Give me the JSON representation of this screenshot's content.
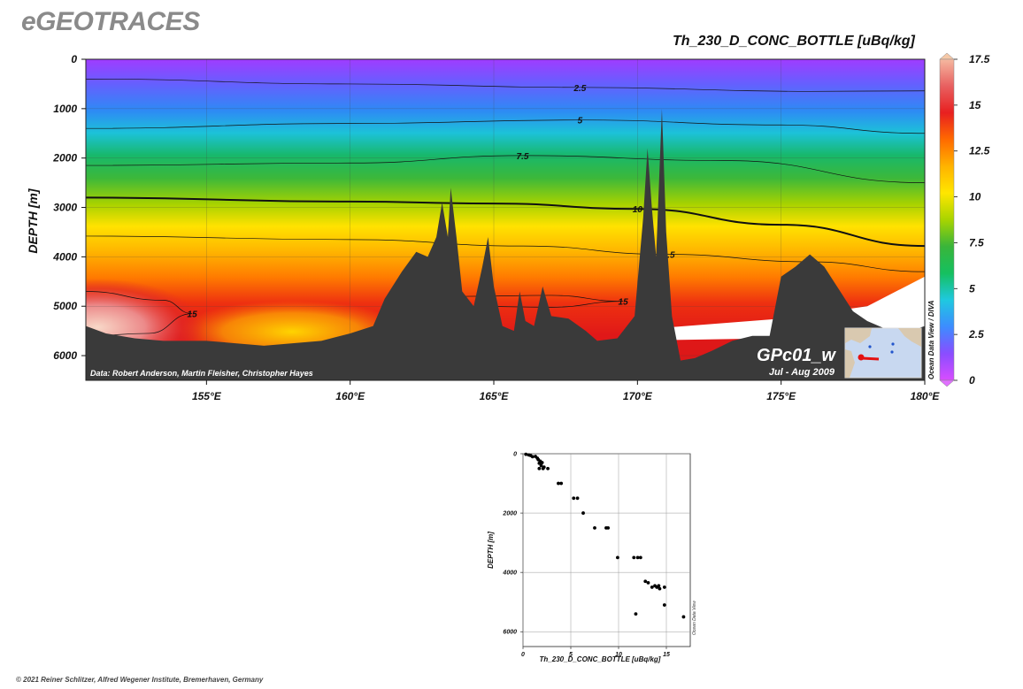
{
  "app_title": "eGEOTRACES",
  "section_title": "Th_230_D_CONC_BOTTLE [uBq/kg]",
  "copyright": "© 2021 Reiner Schlitzer, Alfred Wegener Institute, Bremerhaven, Germany",
  "section": {
    "credit": "Data: Robert Anderson, Martin Fleisher, Christopher Hayes",
    "cruise": "GPc01_w",
    "cruise_date": "Jul - Aug 2009",
    "odv_label": "Ocean Data View / DIVA",
    "colorbar_label": "Th_230_D_CONC_BOTTLE [uBq/kg]"
  },
  "scatter": {
    "odv_label": "Ocean Data View",
    "colors": {
      "points": "#000000"
    }
  },
  "chart_data": [
    {
      "type": "heatmap",
      "title": "Th_230_D_CONC_BOTTLE [uBq/kg]",
      "xlabel": "",
      "ylabel": "DEPTH [m]",
      "x_ticks": [
        "155°E",
        "160°E",
        "165°E",
        "170°E",
        "175°E",
        "180°E"
      ],
      "x_tick_values": [
        155,
        160,
        165,
        170,
        175,
        180
      ],
      "xlim": [
        150.8,
        180
      ],
      "y_ticks": [
        "0",
        "1000",
        "2000",
        "3000",
        "4000",
        "5000",
        "6000"
      ],
      "y_tick_values": [
        0,
        1000,
        2000,
        3000,
        4000,
        5000,
        6000
      ],
      "ylim": [
        0,
        6500
      ],
      "y_inverted": true,
      "colorbar": {
        "range": [
          0,
          17.5
        ],
        "ticks": [
          "0",
          "2.5",
          "5",
          "7.5",
          "10",
          "12.5",
          "15",
          "17.5"
        ],
        "tick_values": [
          0,
          2.5,
          5,
          7.5,
          10,
          12.5,
          15,
          17.5
        ],
        "colors": [
          "#d84dff",
          "#8a4dff",
          "#3d8cff",
          "#1fc8e0",
          "#15c060",
          "#39b53a",
          "#a8d400",
          "#ffe600",
          "#ffb300",
          "#ff6a00",
          "#e82020",
          "#e86060",
          "#f5b8a0"
        ]
      },
      "contours": [
        {
          "label": "2.5",
          "depths": [
            {
              "x": 150.8,
              "y": 400
            },
            {
              "x": 160,
              "y": 500
            },
            {
              "x": 168,
              "y": 570
            },
            {
              "x": 176,
              "y": 650
            },
            {
              "x": 180,
              "y": 640
            }
          ]
        },
        {
          "label": "5",
          "depths": [
            {
              "x": 150.8,
              "y": 1400
            },
            {
              "x": 160,
              "y": 1300
            },
            {
              "x": 168,
              "y": 1230
            },
            {
              "x": 175,
              "y": 1330
            },
            {
              "x": 180,
              "y": 1500
            }
          ]
        },
        {
          "label": "7.5",
          "depths": [
            {
              "x": 150.8,
              "y": 2150
            },
            {
              "x": 160,
              "y": 2100
            },
            {
              "x": 166,
              "y": 1950
            },
            {
              "x": 173,
              "y": 2050
            },
            {
              "x": 180,
              "y": 2500
            }
          ]
        },
        {
          "label": "10",
          "depths": [
            {
              "x": 150.8,
              "y": 2800
            },
            {
              "x": 160,
              "y": 2880
            },
            {
              "x": 165,
              "y": 2920
            },
            {
              "x": 170,
              "y": 3030
            },
            {
              "x": 175,
              "y": 3350
            },
            {
              "x": 180,
              "y": 3780
            }
          ]
        },
        {
          "label": "12.5",
          "depths": [
            {
              "x": 150.8,
              "y": 3580
            },
            {
              "x": 160,
              "y": 3650
            },
            {
              "x": 166,
              "y": 3780
            },
            {
              "x": 171,
              "y": 3950
            },
            {
              "x": 176,
              "y": 4100
            },
            {
              "x": 180,
              "y": 4300
            }
          ]
        },
        {
          "label": "15",
          "depths": [
            {
              "x": 164,
              "y": 4800
            },
            {
              "x": 167,
              "y": 4780
            },
            {
              "x": 169.5,
              "y": 4900
            },
            {
              "x": 167,
              "y": 5020
            },
            {
              "x": 164,
              "y": 5000
            }
          ]
        },
        {
          "label": "15",
          "depths": [
            {
              "x": 150.8,
              "y": 4700
            },
            {
              "x": 153.5,
              "y": 4880
            },
            {
              "x": 154.5,
              "y": 5150
            },
            {
              "x": 153,
              "y": 5550
            },
            {
              "x": 150.8,
              "y": 5600
            }
          ]
        }
      ],
      "bathymetry": [
        {
          "x": 150.8,
          "y": 5400
        },
        {
          "x": 151.5,
          "y": 5550
        },
        {
          "x": 152.5,
          "y": 5650
        },
        {
          "x": 153.5,
          "y": 5700
        },
        {
          "x": 155,
          "y": 5700
        },
        {
          "x": 156,
          "y": 5750
        },
        {
          "x": 157,
          "y": 5800
        },
        {
          "x": 158,
          "y": 5750
        },
        {
          "x": 159,
          "y": 5700
        },
        {
          "x": 160,
          "y": 5550
        },
        {
          "x": 160.8,
          "y": 5400
        },
        {
          "x": 161.2,
          "y": 4850
        },
        {
          "x": 161.8,
          "y": 4300
        },
        {
          "x": 162.3,
          "y": 3900
        },
        {
          "x": 162.7,
          "y": 4000
        },
        {
          "x": 163,
          "y": 3600
        },
        {
          "x": 163.2,
          "y": 2900
        },
        {
          "x": 163.4,
          "y": 3600
        },
        {
          "x": 163.5,
          "y": 2600
        },
        {
          "x": 163.7,
          "y": 3600
        },
        {
          "x": 163.9,
          "y": 4700
        },
        {
          "x": 164.3,
          "y": 5000
        },
        {
          "x": 164.6,
          "y": 4200
        },
        {
          "x": 164.8,
          "y": 3600
        },
        {
          "x": 165,
          "y": 4600
        },
        {
          "x": 165.3,
          "y": 5400
        },
        {
          "x": 165.7,
          "y": 5500
        },
        {
          "x": 165.9,
          "y": 4700
        },
        {
          "x": 166.1,
          "y": 5300
        },
        {
          "x": 166.4,
          "y": 5400
        },
        {
          "x": 166.7,
          "y": 4600
        },
        {
          "x": 167,
          "y": 5200
        },
        {
          "x": 167.6,
          "y": 5250
        },
        {
          "x": 168.2,
          "y": 5500
        },
        {
          "x": 168.6,
          "y": 5700
        },
        {
          "x": 169.3,
          "y": 5650
        },
        {
          "x": 169.9,
          "y": 5200
        },
        {
          "x": 170.2,
          "y": 3200
        },
        {
          "x": 170.35,
          "y": 1800
        },
        {
          "x": 170.5,
          "y": 3000
        },
        {
          "x": 170.65,
          "y": 4000
        },
        {
          "x": 170.85,
          "y": 1000
        },
        {
          "x": 171,
          "y": 3500
        },
        {
          "x": 171.2,
          "y": 5200
        },
        {
          "x": 171.5,
          "y": 6100
        },
        {
          "x": 172,
          "y": 6050
        },
        {
          "x": 172.6,
          "y": 5900
        },
        {
          "x": 173.3,
          "y": 5700
        },
        {
          "x": 174,
          "y": 5600
        },
        {
          "x": 174.6,
          "y": 5600
        },
        {
          "x": 175,
          "y": 4400
        },
        {
          "x": 175.5,
          "y": 4200
        },
        {
          "x": 176,
          "y": 3950
        },
        {
          "x": 176.5,
          "y": 4200
        },
        {
          "x": 177,
          "y": 4650
        },
        {
          "x": 177.5,
          "y": 5100
        },
        {
          "x": 178,
          "y": 5300
        },
        {
          "x": 178.8,
          "y": 5500
        },
        {
          "x": 179.5,
          "y": 5500
        },
        {
          "x": 180,
          "y": 5400
        }
      ]
    },
    {
      "type": "scatter",
      "xlabel": "Th_230_D_CONC_BOTTLE [uBq/kg]",
      "ylabel": "DEPTH [m]",
      "xlim": [
        0,
        17.5
      ],
      "ylim": [
        0,
        6500
      ],
      "y_inverted": true,
      "x_ticks": [
        "0",
        "5",
        "10",
        "15"
      ],
      "x_tick_values": [
        0,
        5,
        10,
        15
      ],
      "y_ticks": [
        "0",
        "2000",
        "4000",
        "6000"
      ],
      "y_tick_values": [
        0,
        2000,
        4000,
        6000
      ],
      "points": [
        {
          "x": 0.3,
          "y": 20
        },
        {
          "x": 0.6,
          "y": 40
        },
        {
          "x": 0.8,
          "y": 60
        },
        {
          "x": 1.0,
          "y": 100
        },
        {
          "x": 1.3,
          "y": 90
        },
        {
          "x": 1.5,
          "y": 150
        },
        {
          "x": 1.6,
          "y": 200
        },
        {
          "x": 1.8,
          "y": 250
        },
        {
          "x": 1.7,
          "y": 320
        },
        {
          "x": 2.0,
          "y": 300
        },
        {
          "x": 1.9,
          "y": 400
        },
        {
          "x": 2.2,
          "y": 450
        },
        {
          "x": 2.1,
          "y": 500
        },
        {
          "x": 1.7,
          "y": 500
        },
        {
          "x": 2.6,
          "y": 500
        },
        {
          "x": 3.7,
          "y": 1000
        },
        {
          "x": 4.0,
          "y": 1000
        },
        {
          "x": 5.3,
          "y": 1500
        },
        {
          "x": 5.7,
          "y": 1500
        },
        {
          "x": 6.3,
          "y": 2000
        },
        {
          "x": 7.5,
          "y": 2500
        },
        {
          "x": 8.7,
          "y": 2500
        },
        {
          "x": 8.9,
          "y": 2500
        },
        {
          "x": 9.9,
          "y": 3500
        },
        {
          "x": 11.6,
          "y": 3500
        },
        {
          "x": 12.0,
          "y": 3500
        },
        {
          "x": 12.3,
          "y": 3500
        },
        {
          "x": 12.8,
          "y": 4300
        },
        {
          "x": 13.1,
          "y": 4350
        },
        {
          "x": 13.5,
          "y": 4500
        },
        {
          "x": 13.8,
          "y": 4450
        },
        {
          "x": 14.0,
          "y": 4500
        },
        {
          "x": 14.2,
          "y": 4450
        },
        {
          "x": 14.3,
          "y": 4550
        },
        {
          "x": 14.8,
          "y": 4500
        },
        {
          "x": 14.8,
          "y": 5100
        },
        {
          "x": 11.8,
          "y": 5400
        },
        {
          "x": 16.8,
          "y": 5500
        }
      ]
    }
  ]
}
